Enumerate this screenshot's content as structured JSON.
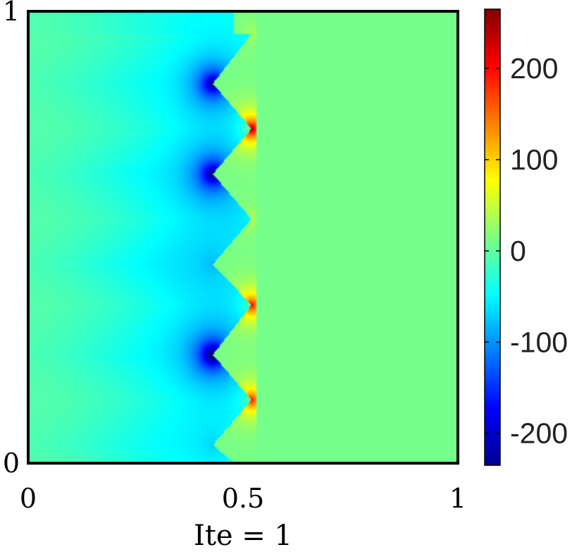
{
  "chart_data": {
    "type": "heatmap",
    "title": "",
    "xlabel": "Ite = 1",
    "ylabel": "",
    "xlim": [
      0,
      1
    ],
    "ylim": [
      0,
      1
    ],
    "x_ticks": [
      {
        "value": 0,
        "label": "0"
      },
      {
        "value": 0.5,
        "label": "0.5"
      },
      {
        "value": 1,
        "label": "1"
      }
    ],
    "y_ticks": [
      {
        "value": 0,
        "label": "0"
      },
      {
        "value": 1,
        "label": "1"
      }
    ],
    "grid": false,
    "colormap": "jet",
    "colorbar": {
      "range": [
        -235,
        265
      ],
      "ticks": [
        {
          "value": 200,
          "label": "200"
        },
        {
          "value": 100,
          "label": "100"
        },
        {
          "value": 0,
          "label": "0"
        },
        {
          "value": -100,
          "label": "-100"
        },
        {
          "value": -200,
          "label": "-200"
        }
      ]
    },
    "background_value": 0,
    "crack_path": [
      [
        0.52,
        0.95
      ],
      [
        0.43,
        0.84
      ],
      [
        0.52,
        0.74
      ],
      [
        0.43,
        0.64
      ],
      [
        0.52,
        0.54
      ],
      [
        0.43,
        0.44
      ],
      [
        0.52,
        0.35
      ],
      [
        0.43,
        0.24
      ],
      [
        0.52,
        0.14
      ],
      [
        0.43,
        0.04
      ],
      [
        0.48,
        0.0
      ]
    ],
    "sources": [
      {
        "x": 0.43,
        "y": 0.84,
        "value": -200
      },
      {
        "x": 0.43,
        "y": 0.64,
        "value": -205
      },
      {
        "x": 0.43,
        "y": 0.24,
        "value": -230
      },
      {
        "x": 0.43,
        "y": 0.44,
        "value": -25
      },
      {
        "x": 0.43,
        "y": 0.04,
        "value": -20
      },
      {
        "x": 0.52,
        "y": 0.74,
        "value": 250
      },
      {
        "x": 0.52,
        "y": 0.35,
        "value": 200
      },
      {
        "x": 0.52,
        "y": 0.14,
        "value": 190
      },
      {
        "x": 0.52,
        "y": 0.54,
        "value": 30
      },
      {
        "x": 0.52,
        "y": 0.95,
        "value": 25
      }
    ]
  }
}
